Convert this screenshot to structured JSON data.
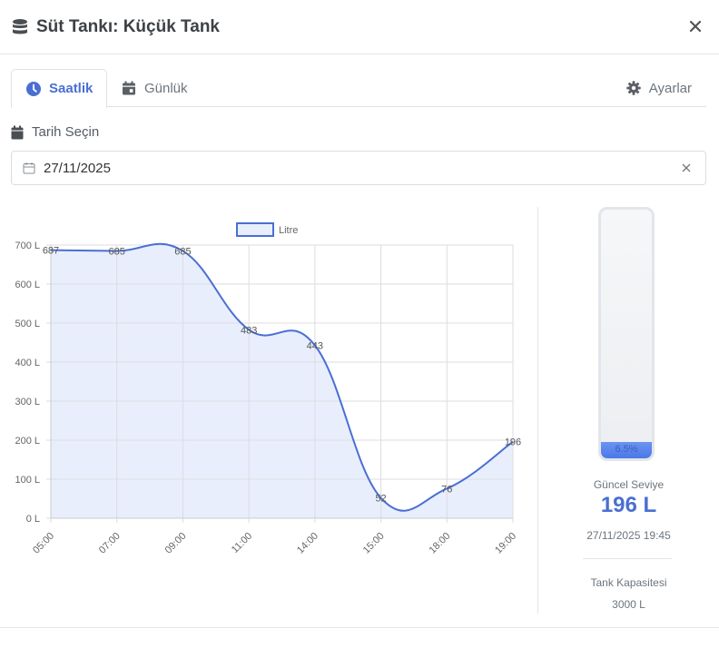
{
  "modal": {
    "title": "Süt Tankı: Küçük Tank",
    "title_icon": "database-icon",
    "close_icon": "close-icon"
  },
  "tabs": [
    {
      "label": "Saatlik",
      "icon": "clock-icon",
      "active": true
    },
    {
      "label": "Günlük",
      "icon": "calendar-icon",
      "active": false
    }
  ],
  "settings": {
    "label": "Ayarlar",
    "icon": "gear-icon"
  },
  "date_picker": {
    "label": "Tarih Seçin",
    "value": "27/11/2025"
  },
  "tank": {
    "fill_percent_label": "6.5%",
    "fill_percent": 6.5,
    "current_label": "Güncel Seviye",
    "current_value": "196 L",
    "timestamp": "27/11/2025 19:45",
    "capacity_label": "Tank Kapasitesi",
    "capacity_value": "3000 L",
    "fill_color": "#4b78e8"
  },
  "chart_data": {
    "type": "area",
    "title": "",
    "legend": [
      {
        "label": "Litre",
        "position": "top"
      }
    ],
    "categories": [
      "05:00",
      "07:00",
      "09:00",
      "11:00",
      "14:00",
      "15:00",
      "18:00",
      "19:00"
    ],
    "series": [
      {
        "name": "Litre",
        "values": [
          687,
          685,
          685,
          483,
          443,
          52,
          76,
          196
        ],
        "color": "#4a6fd3",
        "fill": "#e8eefc"
      }
    ],
    "data_labels": [
      "687",
      "685",
      "685",
      "483",
      "443",
      "52",
      "76",
      "196"
    ],
    "y_ticks": [
      "0 L",
      "100 L",
      "200 L",
      "300 L",
      "400 L",
      "500 L",
      "600 L",
      "700 L"
    ],
    "ylim": [
      0,
      700
    ],
    "xlabel": "",
    "ylabel": "",
    "grid": true,
    "smooth": true
  }
}
